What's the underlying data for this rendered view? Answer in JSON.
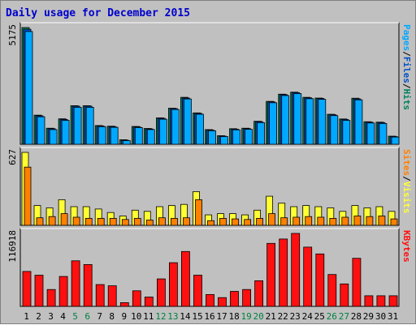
{
  "title": "Daily usage for December 2015",
  "colors": {
    "background": "#c0c0c0",
    "plot_bg": "#c0c0c0",
    "title": "#0000cc",
    "pages": "#00a8ff",
    "files": "#0050c8",
    "hits": "#00805a",
    "visits": "#ffff33",
    "sites": "#ff8000",
    "kbytes": "#ff1010",
    "weekday_label": "#000000",
    "weekend_label": "#008040"
  },
  "chart_data": [
    {
      "type": "bar",
      "panel": "hits-files-pages",
      "ymax_label": "5175",
      "ylim": [
        0,
        5175
      ],
      "categories": [
        "1",
        "2",
        "3",
        "4",
        "5",
        "6",
        "7",
        "8",
        "9",
        "10",
        "11",
        "12",
        "13",
        "14",
        "15",
        "16",
        "17",
        "18",
        "19",
        "20",
        "21",
        "22",
        "23",
        "24",
        "25",
        "26",
        "27",
        "28",
        "29",
        "30",
        "31"
      ],
      "weekend": [
        "5",
        "6",
        "12",
        "13",
        "19",
        "20",
        "26",
        "27"
      ],
      "legend": [
        {
          "text": "Pages",
          "color": "#00a8ff"
        },
        {
          "text": "/",
          "color": "#000000"
        },
        {
          "text": "Files",
          "color": "#0050c8"
        },
        {
          "text": "/",
          "color": "#000000"
        },
        {
          "text": "Hits",
          "color": "#00805a"
        }
      ],
      "series": [
        {
          "name": "Hits",
          "values": [
            5175,
            1290,
            710,
            1130,
            1710,
            1710,
            830,
            800,
            200,
            790,
            700,
            1170,
            1600,
            2080,
            1390,
            650,
            380,
            690,
            710,
            1020,
            1900,
            2220,
            2310,
            2080,
            2050,
            1330,
            1120,
            2040,
            1000,
            980,
            360
          ]
        },
        {
          "name": "Files",
          "values": [
            5100,
            1260,
            690,
            1100,
            1690,
            1690,
            810,
            780,
            180,
            770,
            680,
            1150,
            1580,
            2050,
            1370,
            630,
            360,
            670,
            690,
            1000,
            1880,
            2200,
            2290,
            2060,
            2030,
            1310,
            1100,
            2010,
            980,
            960,
            340
          ]
        },
        {
          "name": "Pages",
          "values": [
            5000,
            1220,
            650,
            1060,
            1640,
            1640,
            780,
            750,
            160,
            740,
            650,
            1110,
            1540,
            2010,
            1330,
            600,
            340,
            640,
            660,
            960,
            1840,
            2160,
            2250,
            2020,
            1990,
            1270,
            1060,
            1970,
            940,
            920,
            320
          ]
        }
      ]
    },
    {
      "type": "bar",
      "panel": "visits-sites",
      "ymax_label": "627",
      "ylim": [
        0,
        627
      ],
      "legend": [
        {
          "text": "Sites",
          "color": "#ff8000"
        },
        {
          "text": "/",
          "color": "#000000"
        },
        {
          "text": "Visits",
          "color": "#ffff33"
        }
      ],
      "series": [
        {
          "name": "Visits",
          "values": [
            627,
            170,
            150,
            220,
            160,
            160,
            140,
            110,
            80,
            130,
            120,
            160,
            170,
            180,
            290,
            90,
            100,
            100,
            90,
            130,
            250,
            190,
            160,
            170,
            160,
            150,
            120,
            170,
            150,
            160,
            120
          ]
        },
        {
          "name": "Sites",
          "values": [
            500,
            65,
            75,
            100,
            70,
            60,
            60,
            60,
            50,
            60,
            45,
            65,
            60,
            65,
            220,
            40,
            60,
            55,
            50,
            60,
            100,
            65,
            70,
            75,
            70,
            60,
            70,
            80,
            75,
            80,
            55
          ]
        }
      ]
    },
    {
      "type": "bar",
      "panel": "kbytes",
      "ymax_label": "116918",
      "ylim": [
        0,
        116918
      ],
      "legend": [
        {
          "text": "KBytes",
          "color": "#ff1010"
        }
      ],
      "series": [
        {
          "name": "KBytes",
          "values": [
            56000,
            50000,
            27000,
            48000,
            73000,
            67000,
            35000,
            33000,
            6000,
            25000,
            15000,
            44000,
            70000,
            88000,
            50000,
            19000,
            14000,
            24000,
            27000,
            41000,
            101000,
            108000,
            116918,
            95000,
            84000,
            51000,
            36000,
            77000,
            17000,
            17000,
            17000
          ]
        }
      ]
    }
  ]
}
